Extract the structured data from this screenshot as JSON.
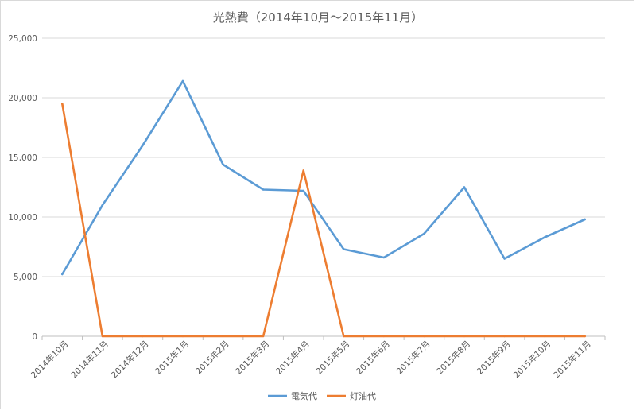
{
  "chart_data": {
    "type": "line",
    "title": "光熱費（2014年10月～2015年11月）",
    "xlabel": "",
    "ylabel": "",
    "categories": [
      "2014年10月",
      "2014年11月",
      "2014年12月",
      "2015年1月",
      "2015年2月",
      "2015年3月",
      "2015年4月",
      "2015年5月",
      "2015年6月",
      "2015年7月",
      "2015年8月",
      "2015年9月",
      "2015年10月",
      "2015年11月"
    ],
    "ylim": [
      0,
      25000
    ],
    "yticks": [
      0,
      5000,
      10000,
      15000,
      20000,
      25000
    ],
    "ytick_labels": [
      "0",
      "5,000",
      "10,000",
      "15,000",
      "20,000",
      "25,000"
    ],
    "grid": true,
    "legend_position": "bottom",
    "series": [
      {
        "name": "電気代",
        "color": "#5b9bd5",
        "values": [
          5200,
          11000,
          16000,
          21400,
          14400,
          12300,
          12200,
          7300,
          6600,
          8600,
          12500,
          6500,
          8300,
          9800
        ]
      },
      {
        "name": "灯油代",
        "color": "#ed7d31",
        "values": [
          19500,
          0,
          0,
          0,
          0,
          0,
          13900,
          0,
          0,
          0,
          0,
          0,
          0,
          0
        ]
      }
    ]
  }
}
